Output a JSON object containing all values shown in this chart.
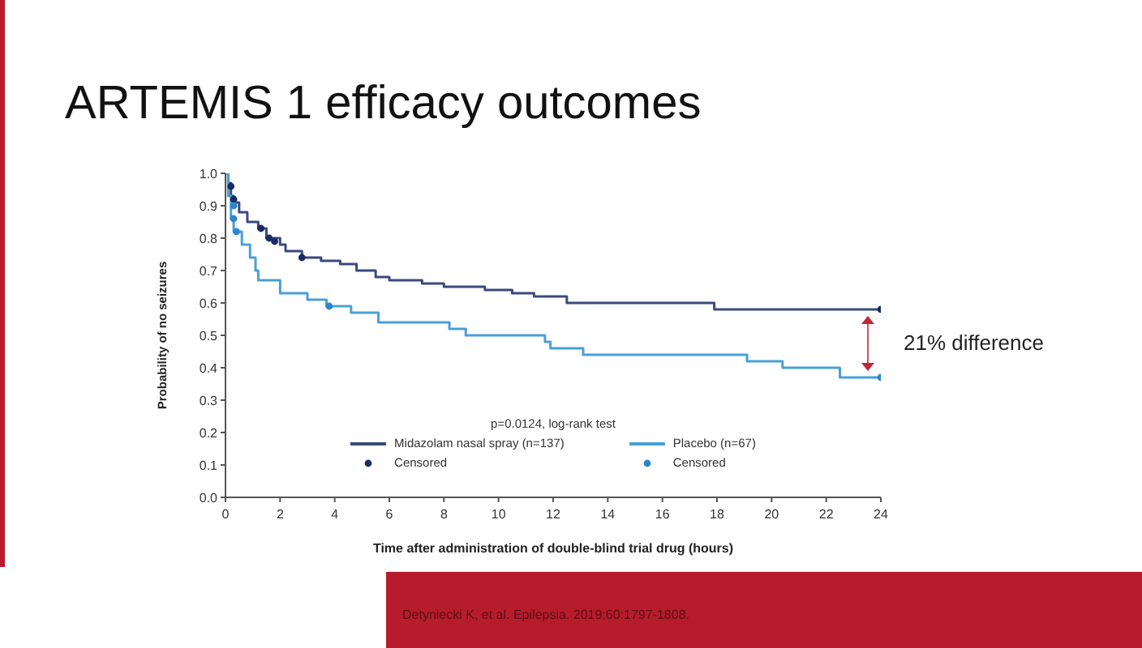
{
  "chart_data": {
    "type": "step",
    "title": "ARTEMIS 1 efficacy outcomes",
    "xlabel": "Time after administration of double-blind trial drug (hours)",
    "ylabel": "Probability of no seizures",
    "legend_title": "p=0.0124, log-rank test",
    "legend": "bottom",
    "grid": false,
    "xlim": [
      0,
      24
    ],
    "xticks": [
      0,
      2,
      4,
      6,
      8,
      10,
      12,
      14,
      16,
      18,
      20,
      22,
      24
    ],
    "ylim": [
      0,
      1
    ],
    "yticks": [
      {
        "value": 0,
        "label": "0.0"
      },
      0.1,
      0.2,
      0.3,
      0.4,
      0.5,
      0.6,
      0.7,
      0.8,
      0.9,
      {
        "value": 1,
        "label": "1.0"
      }
    ],
    "series": [
      {
        "name": "Midazolam nasal spray (n=137)",
        "color": "#3b4a7c",
        "x": [
          0,
          0.1,
          0.2,
          0.3,
          0.5,
          0.8,
          1.2,
          1.5,
          2,
          2.2,
          2.8,
          3.5,
          4.2,
          4.8,
          5.5,
          6,
          7.2,
          8,
          9.5,
          10.5,
          11.3,
          12.5,
          17.9,
          24
        ],
        "values": [
          1,
          0.97,
          0.93,
          0.91,
          0.88,
          0.85,
          0.83,
          0.8,
          0.78,
          0.76,
          0.74,
          0.73,
          0.72,
          0.7,
          0.68,
          0.67,
          0.66,
          0.65,
          0.64,
          0.63,
          0.62,
          0.6,
          0.58,
          0.58
        ]
      },
      {
        "name": "Placebo (n=67)",
        "color": "#4a9fd8",
        "x": [
          0,
          0.1,
          0.2,
          0.3,
          0.6,
          0.9,
          1.1,
          1.2,
          2,
          3,
          3.7,
          4.6,
          5.6,
          8.2,
          8.8,
          11.7,
          11.9,
          13.1,
          19.1,
          20.4,
          22.5,
          24
        ],
        "values": [
          1,
          0.93,
          0.86,
          0.82,
          0.78,
          0.74,
          0.7,
          0.67,
          0.63,
          0.61,
          0.59,
          0.57,
          0.54,
          0.52,
          0.5,
          0.48,
          0.46,
          0.44,
          0.42,
          0.4,
          0.37,
          0.37
        ]
      },
      {
        "name": "Censored",
        "type": "scatter",
        "color": "#1b2b63",
        "x": [
          0.2,
          0.3,
          0.4,
          1.3,
          1.6,
          1.8,
          2.8,
          24
        ],
        "values": [
          0.96,
          0.92,
          null,
          0.83,
          0.8,
          0.79,
          0.74,
          0.58
        ]
      },
      {
        "name": "Censored",
        "type": "scatter",
        "color": "#2a86d0",
        "x": [
          0.3,
          0.3,
          0.4,
          3.8,
          24
        ],
        "values": [
          0.9,
          0.86,
          0.82,
          0.59,
          0.37
        ]
      }
    ],
    "annotations": [
      "21% difference",
      "Detyniecki K, et al. Epilepsia. 2019;60:1797-1808."
    ]
  }
}
